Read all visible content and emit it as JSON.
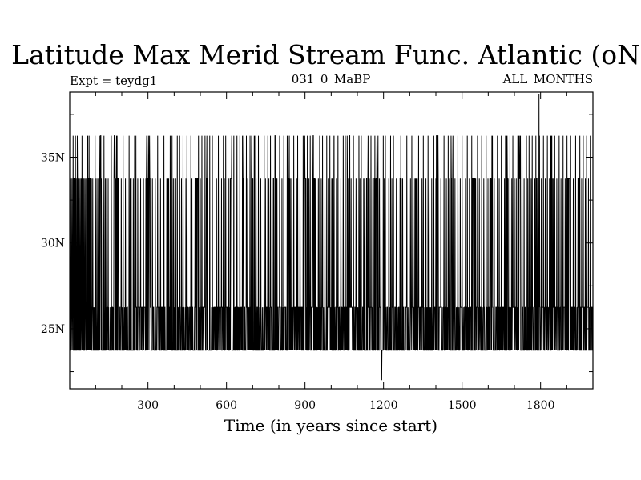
{
  "chart_data": {
    "type": "line",
    "title": "Latitude Max Merid Stream Func. Atlantic (oN)",
    "subtitle_left": "Expt = teydg1",
    "subtitle_center": "031_0_MaBP",
    "subtitle_right": "ALL_MONTHS",
    "xlabel": "Time (in years since start)",
    "ylabel": "",
    "xlim": [
      1,
      2000
    ],
    "ylim": [
      21.5,
      38.8
    ],
    "x_ticks": [
      300,
      600,
      900,
      1200,
      1500,
      1800
    ],
    "x_tick_labels": [
      "300",
      "600",
      "900",
      "1200",
      "1500",
      "1800"
    ],
    "x_minor_step": 100,
    "y_ticks": [
      25,
      30,
      35
    ],
    "y_tick_labels": [
      "25N",
      "30N",
      "35N"
    ],
    "y_minor_step": 2.5,
    "grid": false,
    "line_color": "#000000",
    "series": [
      {
        "levels": [
          23.75,
          26.25,
          33.75,
          36.25
        ],
        "baseline_range": [
          23.75,
          26.25
        ],
        "spikes_to_33_75": [
          2,
          6,
          10,
          14,
          18,
          22,
          26,
          30,
          33,
          37,
          41,
          45,
          48,
          51,
          55,
          59,
          63,
          68,
          73,
          78,
          84,
          89,
          98,
          102,
          112,
          120,
          128,
          132,
          137,
          142,
          148,
          160,
          171,
          182,
          198,
          205,
          214,
          228,
          235,
          249,
          251,
          254,
          261,
          272,
          283,
          295,
          306,
          317,
          328,
          337,
          348,
          361,
          379,
          385,
          392,
          397,
          403,
          421,
          428,
          434,
          445,
          449,
          464,
          468,
          488,
          493,
          500,
          506,
          518,
          527,
          536,
          546,
          562,
          569,
          581,
          588,
          592,
          597,
          608,
          628,
          640,
          651,
          666,
          676,
          681,
          690,
          699,
          708,
          713,
          722,
          731,
          744,
          749,
          758,
          762,
          768,
          786,
          793,
          803,
          812,
          819,
          833,
          840,
          846,
          857,
          868,
          872,
          881,
          899,
          904,
          909,
          915,
          920,
          927,
          931,
          935,
          951,
          956,
          962,
          967,
          976,
          983,
          989,
          995,
          1005,
          1011,
          1020,
          1026,
          1037,
          1046,
          1054,
          1062,
          1071,
          1076,
          1085,
          1095,
          1106,
          1110,
          1115,
          1124,
          1136,
          1141,
          1146,
          1152,
          1159,
          1167,
          1172,
          1179,
          1184,
          1203,
          1207,
          1220,
          1227,
          1232,
          1238,
          1249,
          1266,
          1273,
          1289,
          1303,
          1308,
          1313,
          1323,
          1334,
          1347,
          1352,
          1362,
          1370,
          1374,
          1384,
          1392,
          1400,
          1407,
          1419,
          1431,
          1440,
          1447,
          1452,
          1465,
          1473,
          1484,
          1493,
          1500,
          1513,
          1520,
          1528,
          1537,
          1548,
          1559,
          1566,
          1575,
          1583,
          1592,
          1599,
          1614,
          1623,
          1635,
          1642,
          1650,
          1662,
          1669,
          1676,
          1683,
          1690,
          1694,
          1700,
          1707,
          1713,
          1721,
          1729,
          1737,
          1746,
          1751,
          1756,
          1764,
          1768,
          1776,
          1782,
          1789,
          1796,
          1803,
          1811,
          1818,
          1826,
          1834,
          1841,
          1849,
          1854,
          1862,
          1871,
          1878,
          1886,
          1894,
          1901,
          1908,
          1915,
          1925,
          1934,
          1943,
          1950,
          1957,
          1963,
          1971,
          1976,
          1983,
          1990
        ],
        "spikes_to_36_25": [
          14,
          30,
          48,
          68,
          98,
          120,
          132,
          160,
          171,
          182,
          205,
          228,
          249,
          254,
          295,
          306,
          337,
          361,
          385,
          392,
          421,
          434,
          449,
          464,
          493,
          506,
          518,
          536,
          546,
          569,
          588,
          597,
          628,
          640,
          651,
          666,
          676,
          690,
          708,
          722,
          744,
          758,
          768,
          786,
          803,
          819,
          840,
          857,
          872,
          899,
          909,
          920,
          931,
          956,
          967,
          983,
          995,
          1011,
          1026,
          1046,
          1054,
          1071,
          1085,
          1106,
          1115,
          1141,
          1152,
          1167,
          1179,
          1207,
          1227,
          1238,
          1266,
          1289,
          1308,
          1334,
          1352,
          1370,
          1392,
          1407,
          1431,
          1447,
          1465,
          1484,
          1500,
          1520,
          1537,
          1559,
          1575,
          1592,
          1614,
          1635,
          1650,
          1669,
          1683,
          1694,
          1713,
          1729,
          1746,
          1756,
          1768,
          1782,
          1796,
          1811,
          1826,
          1841,
          1854,
          1871,
          1886,
          1901,
          1915,
          1934,
          1950,
          1963,
          1976,
          1990
        ],
        "dense_bursts": [
          [
            14,
            34
          ],
          [
            70,
            82
          ],
          [
            108,
            122
          ],
          [
            168,
            188
          ],
          [
            232,
            244
          ],
          [
            292,
            308
          ],
          [
            366,
            380
          ],
          [
            404,
            414
          ],
          [
            480,
            494
          ],
          [
            520,
            528
          ],
          [
            614,
            624
          ],
          [
            660,
            668
          ],
          [
            694,
            706
          ],
          [
            778,
            790
          ],
          [
            830,
            842
          ],
          [
            892,
            902
          ],
          [
            930,
            940
          ],
          [
            1002,
            1010
          ],
          [
            1060,
            1070
          ],
          [
            1126,
            1140
          ],
          [
            1162,
            1180
          ],
          [
            1190,
            1200
          ],
          [
            1260,
            1270
          ],
          [
            1320,
            1330
          ],
          [
            1400,
            1412
          ],
          [
            1454,
            1464
          ],
          [
            1540,
            1552
          ],
          [
            1606,
            1616
          ],
          [
            1664,
            1674
          ],
          [
            1716,
            1726
          ],
          [
            1778,
            1790
          ],
          [
            1836,
            1846
          ],
          [
            1904,
            1912
          ],
          [
            1944,
            1952
          ]
        ],
        "extremes": [
          {
            "x": 1193,
            "value": 22.0
          },
          {
            "x": 1794,
            "value": 38.7
          }
        ]
      }
    ]
  }
}
